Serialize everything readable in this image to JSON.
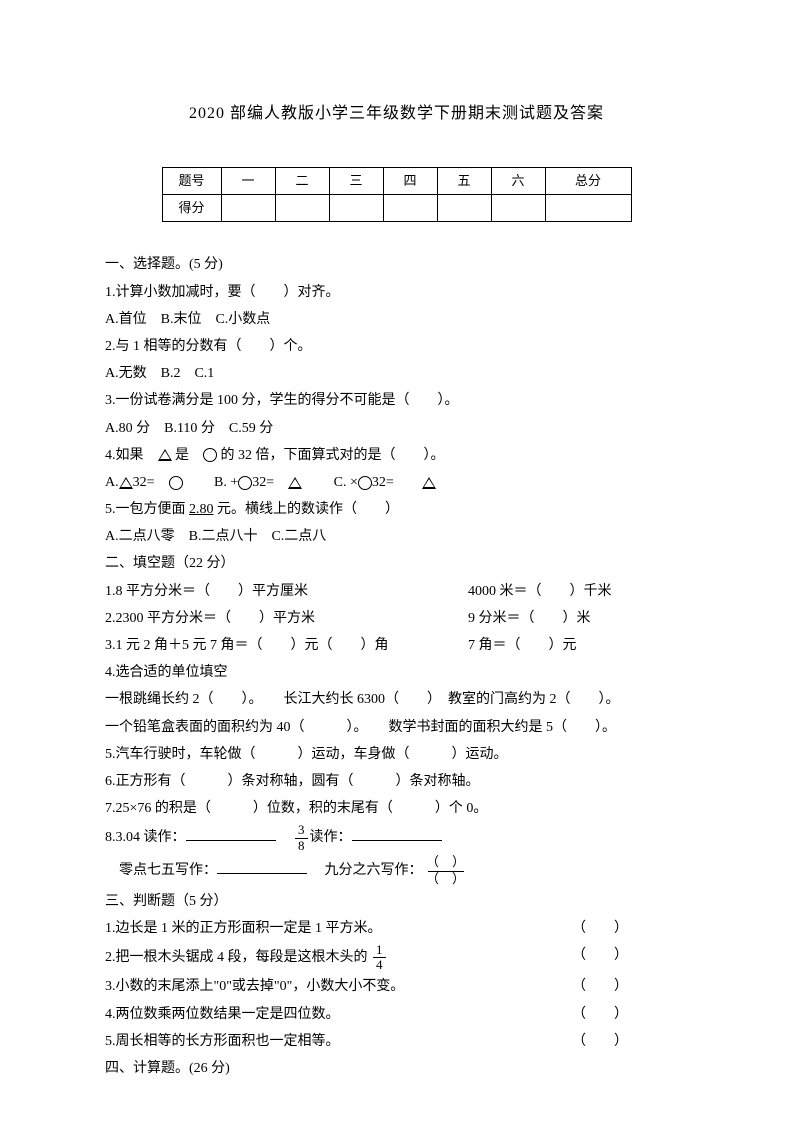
{
  "title": "2020 部编人教版小学三年级数学下册期末测试题及答案",
  "score_table": {
    "headers": [
      "题号",
      "一",
      "二",
      "三",
      "四",
      "五",
      "六",
      "总分"
    ],
    "row_label": "得分"
  },
  "s1": {
    "heading": "一、选择题。(5 分)",
    "q1": "1.计算小数加减时，要（　　）对齐。",
    "q1_opts": "A.首位　B.末位　C.小数点",
    "q2": "2.与 1 相等的分数有（　　）个。",
    "q2_opts": "A.无数　B.2　C.1",
    "q3": "3.一份试卷满分是 100 分，学生的得分不可能是（　　）。",
    "q3_opts": "A.80 分　B.110 分　C.59 分",
    "q4_a": "4.如果　",
    "q4_b": "是　",
    "q4_c": "的 32 倍，下面算式对的是（　　）。",
    "q4o_a": "A.",
    "q4o_a2": "32=　",
    "q4o_b": "　　B. +",
    "q4o_b2": "32=　",
    "q4o_c": "　　C. ×",
    "q4o_c2": "32=　",
    "q5_a": "5.一包方便面 ",
    "q5_price": "2.80",
    "q5_b": " 元。横线上的数读作（　　）",
    "q5_opts": "A.二点八零　B.二点八十　C.二点八"
  },
  "s2": {
    "heading": "二、填空题（22 分）",
    "q1a": "1.8 平方分米＝（　　）平方厘米",
    "q1b": "4000 米＝（　　）千米",
    "q2a": "2.2300 平方分米＝（　　）平方米",
    "q2b": "9 分米＝（　　）米",
    "q3a": "3.1 元 2 角＋5 元 7 角＝（　　）元（　　）角",
    "q3b": "7 角＝（　　）元",
    "q4": "4.选合适的单位填空",
    "q4r1": "一根跳绳长约 2（　　）。　　长江大约长 6300（　　）　教室的门高约为 2（　　）。",
    "q4r2": "一个铅笔盒表面的面积约为 40（　　　）。　　数学书封面的面积大约是 5（　　）。",
    "q5": "5.汽车行驶时，车轮做（　　　）运动，车身做（　　　）运动。",
    "q6": "6.正方形有（　　　）条对称轴，圆有（　　　）条对称轴。",
    "q7": "7.25×76 的积是（　　　）位数，积的末尾有（　　　）个 0。",
    "q8a": "8.3.04 读作：",
    "q8b_frac_num": "3",
    "q8b_frac_den": "8",
    "q8b_label": "读作：",
    "q8c": "零点七五写作：",
    "q8d": "九分之六写作：",
    "q8d_top": "（　）",
    "q8d_bot": "（　）"
  },
  "s3": {
    "heading": "三、判断题（5 分）",
    "q1": "1.边长是 1 米的正方形面积一定是 1 平方米。",
    "q2a": "2.把一根木头锯成 4 段，每段是这根木头的",
    "q2_frac_num": "1",
    "q2_frac_den": "4",
    "q3": "3.小数的末尾添上\"0\"或去掉\"0\"，小数大小不变。",
    "q4": "4.两位数乘两位数结果一定是四位数。",
    "q5": "5.周长相等的长方形面积也一定相等。",
    "paren": "（　　）"
  },
  "s4": {
    "heading": "四、计算题。(26 分)"
  }
}
